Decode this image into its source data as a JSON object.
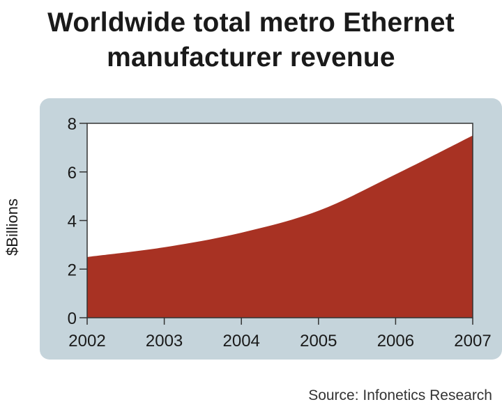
{
  "chart_data": {
    "type": "area",
    "title_lines": [
      "Worldwide total metro Ethernet",
      "manufacturer revenue"
    ],
    "ylabel": "$Billions",
    "xlabel": "",
    "x": [
      "2002",
      "2003",
      "2004",
      "2005",
      "2006",
      "2007"
    ],
    "series": [
      {
        "values": [
          2.5,
          2.9,
          3.5,
          4.4,
          5.9,
          7.5
        ]
      }
    ],
    "ylim": [
      0,
      8
    ],
    "yticks": [
      0,
      2,
      4,
      6,
      8
    ],
    "grid": false,
    "colors": {
      "area": "#a83223",
      "plot_bg": "#ffffff",
      "panel_bg": "#c5d4db",
      "axis": "#333333"
    }
  },
  "source": "Source: Infonetics Research"
}
